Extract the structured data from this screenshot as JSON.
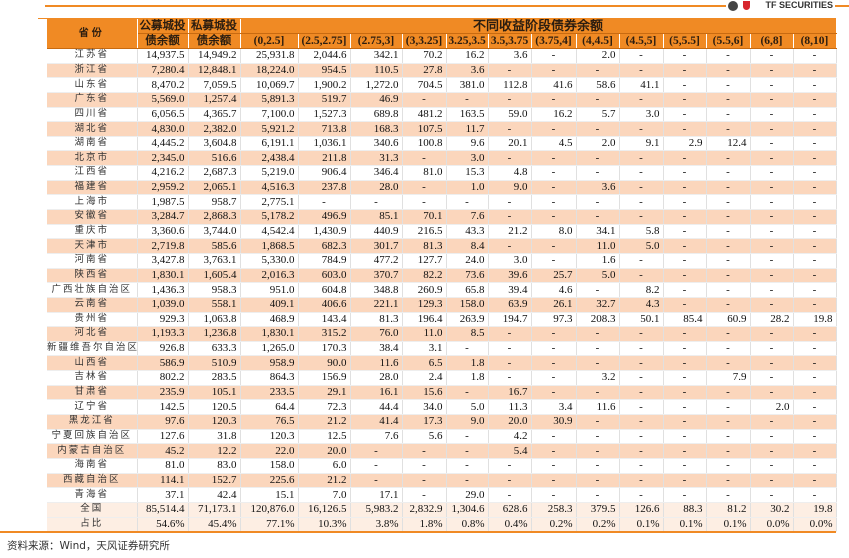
{
  "logo": {
    "text": "TF SECURITIES"
  },
  "colors": {
    "header": "#f08a24",
    "alt_row": "#fbd6bc",
    "summary_row": "#fdeee3"
  },
  "header": {
    "province": "省份",
    "public": [
      "公募城投",
      "债余额"
    ],
    "private": [
      "私募城投",
      "债余额"
    ],
    "group": "不同收益阶段债券余额",
    "buckets": [
      "(0,2.5]",
      "(2.5,2.75]",
      "(2.75,3]",
      "(3,3.25]",
      "3.25,3.5",
      "3.5,3.75",
      "(3.75,4]",
      "(4,4.5]",
      "(4.5,5]",
      "(5,5.5]",
      "(5.5,6]",
      "(6,8]",
      "(8,10]"
    ]
  },
  "rows": [
    {
      "name": "江苏省",
      "v": [
        "14,937.5",
        "14,949.2",
        "25,931.8",
        "2,044.6",
        "342.1",
        "70.2",
        "16.2",
        "3.6",
        "-",
        "2.0",
        "-",
        "-",
        "-",
        "-",
        "-"
      ]
    },
    {
      "name": "浙江省",
      "v": [
        "7,280.4",
        "12,848.1",
        "18,224.0",
        "954.5",
        "110.5",
        "27.8",
        "3.6",
        "-",
        "-",
        "-",
        "-",
        "-",
        "-",
        "-",
        "-"
      ]
    },
    {
      "name": "山东省",
      "v": [
        "8,470.2",
        "7,059.5",
        "10,069.7",
        "1,900.2",
        "1,272.0",
        "704.5",
        "381.0",
        "112.8",
        "41.6",
        "58.6",
        "41.1",
        "-",
        "-",
        "-",
        "-"
      ]
    },
    {
      "name": "广东省",
      "v": [
        "5,569.0",
        "1,257.4",
        "5,891.3",
        "519.7",
        "46.9",
        "-",
        "-",
        "-",
        "-",
        "-",
        "-",
        "-",
        "-",
        "-",
        "-"
      ]
    },
    {
      "name": "四川省",
      "v": [
        "6,056.5",
        "4,365.7",
        "7,100.0",
        "1,527.3",
        "689.8",
        "481.2",
        "163.5",
        "59.0",
        "16.2",
        "5.7",
        "3.0",
        "-",
        "-",
        "-",
        "-"
      ]
    },
    {
      "name": "湖北省",
      "v": [
        "4,830.0",
        "2,382.0",
        "5,921.2",
        "713.8",
        "168.3",
        "107.5",
        "11.7",
        "-",
        "-",
        "-",
        "-",
        "-",
        "-",
        "-",
        "-"
      ]
    },
    {
      "name": "湖南省",
      "v": [
        "4,445.2",
        "3,604.8",
        "6,191.1",
        "1,036.1",
        "340.6",
        "100.8",
        "9.6",
        "20.1",
        "4.5",
        "2.0",
        "9.1",
        "2.9",
        "12.4",
        "-",
        "-"
      ]
    },
    {
      "name": "北京市",
      "v": [
        "2,345.0",
        "516.6",
        "2,438.4",
        "211.8",
        "31.3",
        "-",
        "3.0",
        "-",
        "-",
        "-",
        "-",
        "-",
        "-",
        "-",
        "-"
      ]
    },
    {
      "name": "江西省",
      "v": [
        "4,216.2",
        "2,687.3",
        "5,219.0",
        "906.4",
        "346.4",
        "81.0",
        "15.3",
        "4.8",
        "-",
        "-",
        "-",
        "-",
        "-",
        "-",
        "-"
      ]
    },
    {
      "name": "福建省",
      "v": [
        "2,959.2",
        "2,065.1",
        "4,516.3",
        "237.8",
        "28.0",
        "-",
        "1.0",
        "9.0",
        "-",
        "3.6",
        "-",
        "-",
        "-",
        "-",
        "-"
      ]
    },
    {
      "name": "上海市",
      "v": [
        "1,987.5",
        "958.7",
        "2,775.1",
        "-",
        "-",
        "-",
        "-",
        "-",
        "-",
        "-",
        "-",
        "-",
        "-",
        "-",
        "-"
      ]
    },
    {
      "name": "安徽省",
      "v": [
        "3,284.7",
        "2,868.3",
        "5,178.2",
        "496.9",
        "85.1",
        "70.1",
        "7.6",
        "-",
        "-",
        "-",
        "-",
        "-",
        "-",
        "-",
        "-"
      ]
    },
    {
      "name": "重庆市",
      "v": [
        "3,360.6",
        "3,744.0",
        "4,542.4",
        "1,430.9",
        "440.9",
        "216.5",
        "43.3",
        "21.2",
        "8.0",
        "34.1",
        "5.8",
        "-",
        "-",
        "-",
        "-"
      ]
    },
    {
      "name": "天津市",
      "v": [
        "2,719.8",
        "585.6",
        "1,868.5",
        "682.3",
        "301.7",
        "81.3",
        "8.4",
        "-",
        "-",
        "11.0",
        "5.0",
        "-",
        "-",
        "-",
        "-"
      ]
    },
    {
      "name": "河南省",
      "v": [
        "3,427.8",
        "3,763.1",
        "5,330.0",
        "784.9",
        "477.2",
        "127.7",
        "24.0",
        "3.0",
        "-",
        "1.6",
        "-",
        "-",
        "-",
        "-",
        "-"
      ]
    },
    {
      "name": "陕西省",
      "v": [
        "1,830.1",
        "1,605.4",
        "2,016.3",
        "603.0",
        "370.7",
        "82.2",
        "73.6",
        "39.6",
        "25.7",
        "5.0",
        "-",
        "-",
        "-",
        "-",
        "-"
      ]
    },
    {
      "name": "广西壮族自治区",
      "v": [
        "1,436.3",
        "958.3",
        "951.0",
        "604.8",
        "348.8",
        "260.9",
        "65.8",
        "39.4",
        "4.6",
        "-",
        "8.2",
        "-",
        "-",
        "-",
        "-"
      ]
    },
    {
      "name": "云南省",
      "v": [
        "1,039.0",
        "558.1",
        "409.1",
        "406.6",
        "221.1",
        "129.3",
        "158.0",
        "63.9",
        "26.1",
        "32.7",
        "4.3",
        "-",
        "-",
        "-",
        "-"
      ]
    },
    {
      "name": "贵州省",
      "v": [
        "929.3",
        "1,063.8",
        "468.9",
        "143.4",
        "81.3",
        "196.4",
        "263.9",
        "194.7",
        "97.3",
        "208.3",
        "50.1",
        "85.4",
        "60.9",
        "28.2",
        "19.8"
      ]
    },
    {
      "name": "河北省",
      "v": [
        "1,193.3",
        "1,236.8",
        "1,830.1",
        "315.2",
        "76.0",
        "11.0",
        "8.5",
        "-",
        "-",
        "-",
        "-",
        "-",
        "-",
        "-",
        "-"
      ]
    },
    {
      "name": "新疆维吾尔自治区",
      "v": [
        "926.8",
        "633.3",
        "1,265.0",
        "170.3",
        "38.4",
        "3.1",
        "-",
        "-",
        "-",
        "-",
        "-",
        "-",
        "-",
        "-",
        "-"
      ]
    },
    {
      "name": "山西省",
      "v": [
        "586.9",
        "510.9",
        "958.9",
        "90.0",
        "11.6",
        "6.5",
        "1.8",
        "-",
        "-",
        "-",
        "-",
        "-",
        "-",
        "-",
        "-"
      ]
    },
    {
      "name": "吉林省",
      "v": [
        "802.2",
        "283.5",
        "864.3",
        "156.9",
        "28.0",
        "2.4",
        "1.8",
        "-",
        "-",
        "3.2",
        "-",
        "-",
        "7.9",
        "-",
        "-"
      ]
    },
    {
      "name": "甘肃省",
      "v": [
        "235.9",
        "105.1",
        "233.5",
        "29.1",
        "16.1",
        "15.6",
        "-",
        "16.7",
        "-",
        "-",
        "-",
        "-",
        "-",
        "-",
        "-"
      ]
    },
    {
      "name": "辽宁省",
      "v": [
        "142.5",
        "120.5",
        "64.4",
        "72.3",
        "44.4",
        "34.0",
        "5.0",
        "11.3",
        "3.4",
        "11.6",
        "-",
        "-",
        "-",
        "2.0",
        "-"
      ]
    },
    {
      "name": "黑龙江省",
      "v": [
        "97.6",
        "120.3",
        "76.5",
        "21.2",
        "41.4",
        "17.3",
        "9.0",
        "20.0",
        "30.9",
        "-",
        "-",
        "-",
        "-",
        "-",
        "-"
      ]
    },
    {
      "name": "宁夏回族自治区",
      "v": [
        "127.6",
        "31.8",
        "120.3",
        "12.5",
        "7.6",
        "5.6",
        "-",
        "4.2",
        "-",
        "-",
        "-",
        "-",
        "-",
        "-",
        "-"
      ]
    },
    {
      "name": "内蒙古自治区",
      "v": [
        "45.2",
        "12.2",
        "22.0",
        "20.0",
        "-",
        "-",
        "-",
        "5.4",
        "-",
        "-",
        "-",
        "-",
        "-",
        "-",
        "-"
      ]
    },
    {
      "name": "海南省",
      "v": [
        "81.0",
        "83.0",
        "158.0",
        "6.0",
        "-",
        "-",
        "-",
        "-",
        "-",
        "-",
        "-",
        "-",
        "-",
        "-",
        "-"
      ]
    },
    {
      "name": "西藏自治区",
      "v": [
        "114.1",
        "152.7",
        "225.6",
        "21.2",
        "-",
        "-",
        "-",
        "-",
        "-",
        "-",
        "-",
        "-",
        "-",
        "-",
        "-"
      ]
    },
    {
      "name": "青海省",
      "v": [
        "37.1",
        "42.4",
        "15.1",
        "7.0",
        "17.1",
        "-",
        "29.0",
        "-",
        "-",
        "-",
        "-",
        "-",
        "-",
        "-",
        "-"
      ]
    }
  ],
  "summary": [
    {
      "name": "全国",
      "v": [
        "85,514.4",
        "71,173.1",
        "120,876.0",
        "16,126.5",
        "5,983.2",
        "2,832.9",
        "1,304.6",
        "628.6",
        "258.3",
        "379.5",
        "126.6",
        "88.3",
        "81.2",
        "30.2",
        "19.8"
      ]
    },
    {
      "name": "占比",
      "v": [
        "54.6%",
        "45.4%",
        "77.1%",
        "10.3%",
        "3.8%",
        "1.8%",
        "0.8%",
        "0.4%",
        "0.2%",
        "0.2%",
        "0.1%",
        "0.1%",
        "0.1%",
        "0.0%",
        "0.0%"
      ]
    }
  ],
  "footer": {
    "source": "资料来源：Wind，天风证券研究所"
  }
}
